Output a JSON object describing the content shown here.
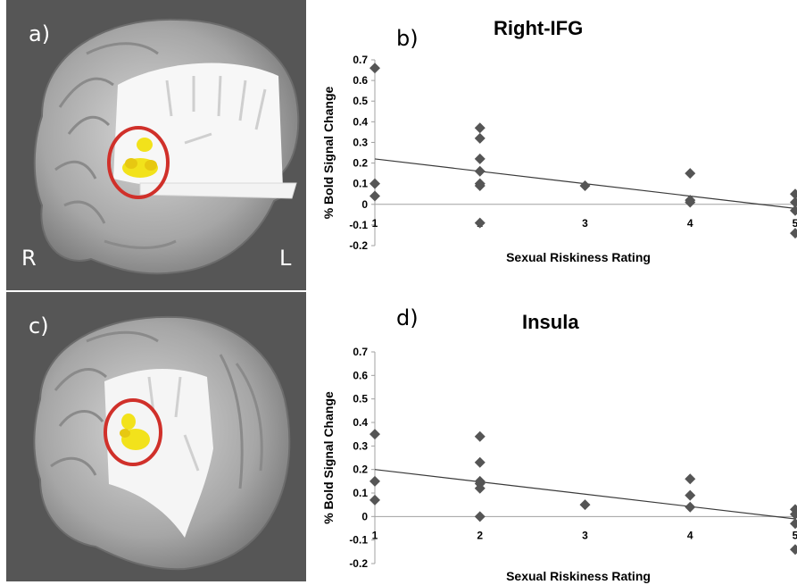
{
  "panels": {
    "a_label": "a)",
    "c_label": "c)",
    "right_label": "R",
    "left_label": "L",
    "highlight_color": "#d0302a",
    "activation_color": "#f2e21b",
    "background_color": "#565656"
  },
  "chart_data": [
    {
      "type": "scatter",
      "panel_label": "b)",
      "title": "Right-IFG",
      "xlabel": "Sexual Riskiness Rating",
      "ylabel": "% Bold Signal Change",
      "xlim": [
        1,
        5
      ],
      "ylim": [
        -0.2,
        0.7
      ],
      "x_ticks": [
        "1",
        "2",
        "3",
        "4",
        "5"
      ],
      "y_ticks": [
        "0.7",
        "0.6",
        "0.5",
        "0.4",
        "0.3",
        "0.2",
        "0.1",
        "0",
        "-0.1",
        "-0.2"
      ],
      "marker": "diamond",
      "marker_color": "#555555",
      "points": [
        {
          "x": 1,
          "y": 0.66
        },
        {
          "x": 1,
          "y": 0.1
        },
        {
          "x": 1,
          "y": 0.04
        },
        {
          "x": 2,
          "y": 0.37
        },
        {
          "x": 2,
          "y": 0.32
        },
        {
          "x": 2,
          "y": 0.22
        },
        {
          "x": 2,
          "y": 0.16
        },
        {
          "x": 2,
          "y": 0.1
        },
        {
          "x": 2,
          "y": 0.09
        },
        {
          "x": 2,
          "y": -0.09
        },
        {
          "x": 3,
          "y": 0.09
        },
        {
          "x": 4,
          "y": 0.15
        },
        {
          "x": 4,
          "y": 0.02
        },
        {
          "x": 4,
          "y": 0.01
        },
        {
          "x": 5,
          "y": 0.05
        },
        {
          "x": 5,
          "y": 0.01
        },
        {
          "x": 5,
          "y": -0.03
        },
        {
          "x": 5,
          "y": -0.14
        }
      ],
      "trendline": {
        "x": [
          1,
          5
        ],
        "y": [
          0.22,
          -0.02
        ]
      }
    },
    {
      "type": "scatter",
      "panel_label": "d)",
      "title": "Insula",
      "xlabel": "Sexual Riskiness Rating",
      "ylabel": "% Bold Signal Change",
      "xlim": [
        1,
        5
      ],
      "ylim": [
        -0.2,
        0.7
      ],
      "x_ticks": [
        "1",
        "2",
        "3",
        "4",
        "5"
      ],
      "y_ticks": [
        "0.7",
        "0.6",
        "0.5",
        "0.4",
        "0.3",
        "0.2",
        "0.1",
        "0",
        "-0.1",
        "-0.2"
      ],
      "marker": "diamond",
      "marker_color": "#555555",
      "points": [
        {
          "x": 1,
          "y": 0.35
        },
        {
          "x": 1,
          "y": 0.15
        },
        {
          "x": 1,
          "y": 0.07
        },
        {
          "x": 2,
          "y": 0.34
        },
        {
          "x": 2,
          "y": 0.23
        },
        {
          "x": 2,
          "y": 0.15
        },
        {
          "x": 2,
          "y": 0.14
        },
        {
          "x": 2,
          "y": 0.12
        },
        {
          "x": 2,
          "y": 0.0
        },
        {
          "x": 3,
          "y": 0.05
        },
        {
          "x": 4,
          "y": 0.16
        },
        {
          "x": 4,
          "y": 0.09
        },
        {
          "x": 4,
          "y": 0.04
        },
        {
          "x": 5,
          "y": 0.03
        },
        {
          "x": 5,
          "y": 0.01
        },
        {
          "x": 5,
          "y": -0.03
        },
        {
          "x": 5,
          "y": -0.14
        }
      ],
      "trendline": {
        "x": [
          1,
          5
        ],
        "y": [
          0.2,
          -0.01
        ]
      }
    }
  ]
}
